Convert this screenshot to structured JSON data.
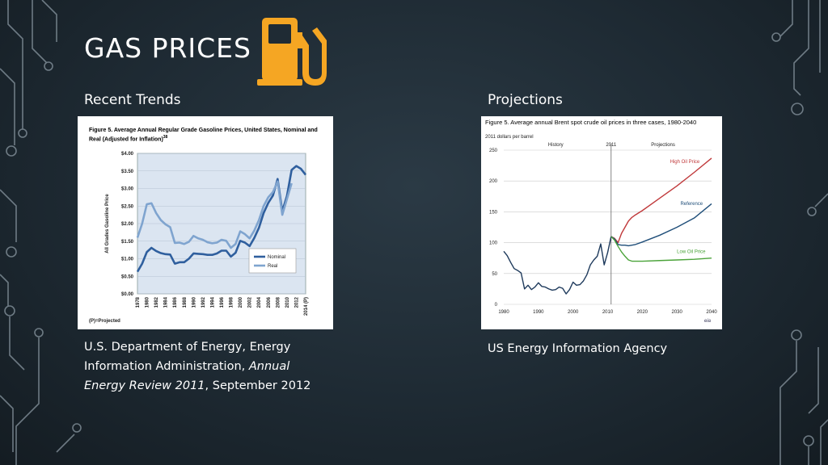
{
  "slide": {
    "title": "GAS PRICES",
    "fuel_icon": "gas-pump-icon",
    "accent": "#F5A623",
    "left": {
      "subheading": "Recent Trends",
      "caption_1": "U.S. Department of Energy, Energy Information Administration, ",
      "caption_italic": "Annual Energy Review 2011",
      "caption_2": ", September 2012"
    },
    "right": {
      "subheading": "Projections",
      "caption": "US Energy Information Agency"
    }
  },
  "chart_data": [
    {
      "type": "line",
      "title": "Figure 5. Average Annual Regular Grade Gasoline Prices, United States, Nominal and Real (Adjusted for Inflation)",
      "footnote_marker": "38",
      "ylabel": "All Grades Gasoline Price",
      "ylim": [
        0,
        4
      ],
      "yticks": [
        "$0.00",
        "$0.50",
        "$1.00",
        "$1.50",
        "$2.00",
        "$2.50",
        "$3.00",
        "$3.50",
        "$4.00"
      ],
      "xticks": [
        "1978",
        "1980",
        "1982",
        "1984",
        "1986",
        "1988",
        "1990",
        "1992",
        "1994",
        "1996",
        "1998",
        "2000",
        "2002",
        "2004",
        "2006",
        "2008",
        "2010",
        "2012",
        "2014 (P)"
      ],
      "note": "(P)=Projected",
      "grid": true,
      "legend": "bottom-right",
      "series": [
        {
          "name": "Nominal",
          "color": "#2F5F9E",
          "x": [
            1978,
            1979,
            1980,
            1981,
            1982,
            1983,
            1984,
            1985,
            1986,
            1987,
            1988,
            1989,
            1990,
            1991,
            1992,
            1993,
            1994,
            1995,
            1996,
            1997,
            1998,
            1999,
            2000,
            2001,
            2002,
            2003,
            2004,
            2005,
            2006,
            2007,
            2008,
            2009,
            2010,
            2011,
            2012,
            2013,
            2014
          ],
          "values": [
            0.63,
            0.86,
            1.19,
            1.31,
            1.22,
            1.16,
            1.13,
            1.12,
            0.86,
            0.9,
            0.9,
            1.0,
            1.15,
            1.14,
            1.13,
            1.11,
            1.11,
            1.15,
            1.23,
            1.23,
            1.06,
            1.17,
            1.51,
            1.46,
            1.36,
            1.59,
            1.88,
            2.3,
            2.59,
            2.8,
            3.27,
            2.35,
            2.79,
            3.53,
            3.64,
            3.56,
            3.39
          ]
        },
        {
          "name": "Real",
          "color": "#7FA4CF",
          "x": [
            1978,
            1979,
            1980,
            1981,
            1982,
            1983,
            1984,
            1985,
            1986,
            1987,
            1988,
            1989,
            1990,
            1991,
            1992,
            1993,
            1994,
            1995,
            1996,
            1997,
            1998,
            1999,
            2000,
            2001,
            2002,
            2003,
            2004,
            2005,
            2006,
            2007,
            2008,
            2009,
            2010,
            2011
          ],
          "values": [
            1.6,
            2.0,
            2.55,
            2.58,
            2.3,
            2.1,
            1.98,
            1.9,
            1.45,
            1.46,
            1.42,
            1.48,
            1.65,
            1.58,
            1.54,
            1.47,
            1.44,
            1.46,
            1.54,
            1.51,
            1.31,
            1.42,
            1.78,
            1.7,
            1.58,
            1.8,
            2.1,
            2.5,
            2.75,
            2.9,
            3.2,
            2.25,
            2.7,
            3.15
          ]
        }
      ]
    },
    {
      "type": "line",
      "title": "Figure 5. Average annual Brent spot crude oil prices in three cases, 1980-2040",
      "ylabel": "2011 dollars per barrel",
      "ylim": [
        0,
        250
      ],
      "xlim": [
        1980,
        2040
      ],
      "yticks": [
        "0",
        "50",
        "100",
        "150",
        "200",
        "250"
      ],
      "xticks": [
        "1980",
        "1990",
        "2000",
        "2010",
        "2020",
        "2030",
        "2040"
      ],
      "divider_label": "2011",
      "region_labels": [
        "History",
        "Projections"
      ],
      "logo": "eia",
      "grid": true,
      "series": [
        {
          "name": "",
          "color": "#1E3A5C",
          "x": [
            1980,
            1981,
            1982,
            1983,
            1984,
            1985,
            1986,
            1987,
            1988,
            1989,
            1990,
            1991,
            1992,
            1993,
            1994,
            1995,
            1996,
            1997,
            1998,
            1999,
            2000,
            2001,
            2002,
            2003,
            2004,
            2005,
            2006,
            2007,
            2008,
            2009,
            2010,
            2011
          ],
          "values": [
            86,
            79,
            68,
            58,
            55,
            51,
            25,
            31,
            24,
            28,
            35,
            29,
            28,
            25,
            23,
            24,
            28,
            26,
            17,
            24,
            36,
            31,
            32,
            38,
            48,
            64,
            72,
            78,
            98,
            64,
            84,
            110
          ]
        },
        {
          "name": "High Oil Price",
          "color": "#C0393B",
          "x": [
            2011,
            2012,
            2013,
            2014,
            2015,
            2016,
            2017,
            2018,
            2020,
            2025,
            2030,
            2035,
            2040
          ],
          "values": [
            110,
            107,
            100,
            115,
            125,
            135,
            141,
            145,
            152,
            172,
            192,
            214,
            237
          ]
        },
        {
          "name": "Reference",
          "color": "#1F4E79",
          "x": [
            2011,
            2012,
            2013,
            2014,
            2015,
            2016,
            2017,
            2018,
            2020,
            2025,
            2030,
            2035,
            2040
          ],
          "values": [
            110,
            106,
            97,
            96,
            96,
            95,
            96,
            97,
            101,
            112,
            125,
            140,
            163
          ]
        },
        {
          "name": "Low Oil Price",
          "color": "#4BA33A",
          "x": [
            2011,
            2012,
            2013,
            2014,
            2015,
            2016,
            2017,
            2018,
            2020,
            2025,
            2030,
            2035,
            2040
          ],
          "values": [
            110,
            104,
            94,
            85,
            78,
            72,
            70,
            70,
            70,
            71,
            72,
            73,
            75
          ]
        }
      ]
    }
  ]
}
